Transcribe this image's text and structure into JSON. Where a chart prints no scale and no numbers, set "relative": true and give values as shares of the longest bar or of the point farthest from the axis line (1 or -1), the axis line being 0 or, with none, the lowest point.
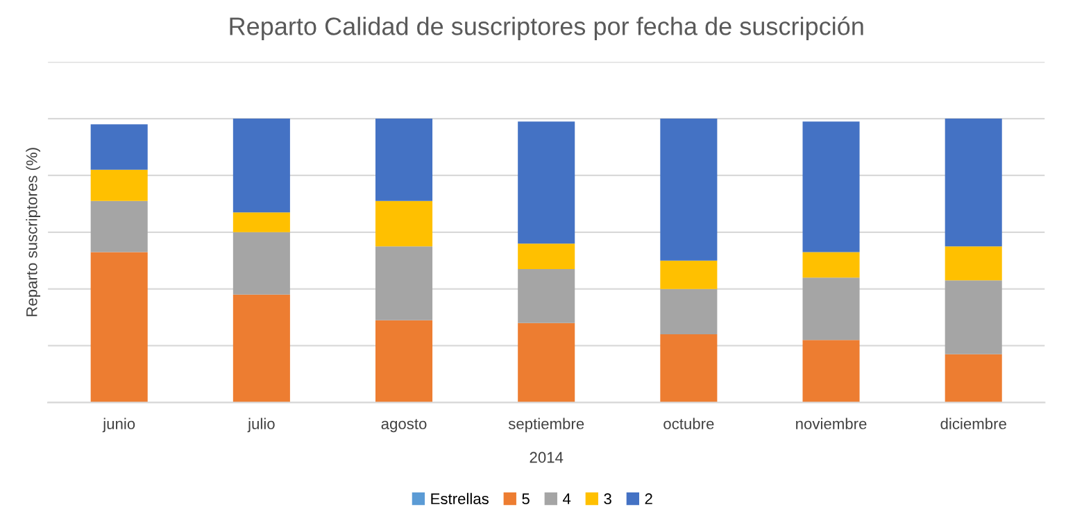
{
  "chart_data": {
    "type": "bar",
    "title": "Reparto Calidad de suscriptores por fecha de suscripción",
    "ylabel": "Reparto suscriptores (%)",
    "xlabel": "2014",
    "categories": [
      "junio",
      "julio",
      "agosto",
      "septiembre",
      "octubre",
      "noviembre",
      "diciembre"
    ],
    "stacked": true,
    "relative": true,
    "grid": "y",
    "legend": "bottom",
    "series": [
      {
        "name": "Estrellas",
        "color": "#5b9bd5",
        "values": [
          null,
          null,
          null,
          null,
          null,
          null,
          null
        ]
      },
      {
        "name": "5",
        "color": "#ed7d31",
        "values": [
          0.53,
          0.38,
          0.29,
          0.28,
          0.24,
          0.22,
          0.17
        ]
      },
      {
        "name": "4",
        "color": "#a5a5a5",
        "values": [
          0.18,
          0.22,
          0.26,
          0.19,
          0.16,
          0.22,
          0.26
        ]
      },
      {
        "name": "3",
        "color": "#ffc000",
        "values": [
          0.11,
          0.07,
          0.16,
          0.09,
          0.1,
          0.09,
          0.12
        ]
      },
      {
        "name": "2",
        "color": "#4472c4",
        "values": [
          0.16,
          0.33,
          0.29,
          0.43,
          0.5,
          0.46,
          0.45
        ]
      }
    ]
  }
}
